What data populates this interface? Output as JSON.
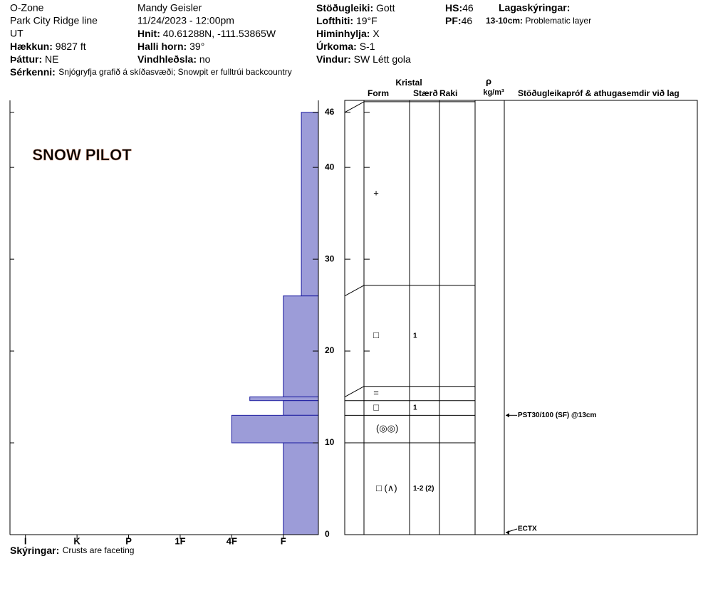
{
  "header": {
    "col1": [
      {
        "text": "O-Zone"
      },
      {
        "text": "Park City Ridge line"
      },
      {
        "text": "UT"
      },
      {
        "label": "Hækkun:",
        "value": "9827 ft"
      },
      {
        "label": "Þáttur:",
        "value": "NE"
      }
    ],
    "col2": [
      {
        "text": "Mandy Geisler"
      },
      {
        "text": "11/24/2023 - 12:00pm"
      },
      {
        "label": "Hnit:",
        "value": "40.61288N, -111.53865W"
      },
      {
        "label": "Halli horn:",
        "value": "39°"
      },
      {
        "label": "Vindhleðsla:",
        "value": "no"
      }
    ],
    "col3": [
      {
        "label": "Stöðugleiki:",
        "value": "Gott"
      },
      {
        "label": "Lofthiti:",
        "value": "19°F"
      },
      {
        "label": "Himinhylja:",
        "value": "X"
      },
      {
        "label": "Úrkoma:",
        "value": "S-1"
      },
      {
        "label": "Vindur:",
        "value": "SW Létt gola"
      }
    ],
    "col4": [
      {
        "label": "HS:",
        "value": "46"
      },
      {
        "label": "PF:",
        "value": "46"
      }
    ],
    "notes_title": "Lagaskýringar:",
    "notes": [
      {
        "label": "13-10cm:",
        "value": "Problematic layer"
      }
    ],
    "features": {
      "label": "Sérkenni:",
      "value": "Snjógryfja grafið á skíðasvæði;  Snowpit er fulltrúi backcountry"
    }
  },
  "chart_data": {
    "type": "snow-profile",
    "logo": "SNOW PILOT",
    "color": "#9c9cd8",
    "ylim": [
      0,
      47.3
    ],
    "yticks": [
      0,
      10,
      20,
      30,
      40,
      46
    ],
    "xlim": [
      6.3,
      0.32
    ],
    "xticks": [
      {
        "value": 6,
        "label": "I"
      },
      {
        "value": 5,
        "label": "K"
      },
      {
        "value": 4,
        "label": "P"
      },
      {
        "value": 3,
        "label": "1F"
      },
      {
        "value": 2,
        "label": "4F"
      },
      {
        "value": 1,
        "label": "F"
      }
    ],
    "layers": [
      {
        "top": 46,
        "bottom": 26,
        "hardness": 0.65,
        "form": "+"
      },
      {
        "top": 26,
        "bottom": 15,
        "hardness": 1,
        "form": "□",
        "size": "1"
      },
      {
        "top": 15,
        "bottom": 14.6,
        "hardness": 1.65,
        "form": "="
      },
      {
        "top": 14.6,
        "bottom": 13,
        "hardness": 1,
        "form": "□",
        "size": "1"
      },
      {
        "top": 13,
        "bottom": 10,
        "hardness": 2,
        "form": "(◎◎)"
      },
      {
        "top": 10,
        "bottom": 0,
        "hardness": 1,
        "form": "□ (∧)",
        "size": "1-2 (2)"
      }
    ],
    "table_headers": {
      "crystal": "Kristal",
      "form": "Form",
      "size": "Stærð",
      "moisture": "Raki",
      "rho": "ρ",
      "density_unit": "kg/m³",
      "tests": "Stöðugleikapróf & athugasemdir við lag"
    },
    "tests": [
      {
        "depth": 13,
        "label": "PST30/100 (SF) @13cm"
      },
      {
        "depth": 0,
        "label": "ECTX"
      }
    ],
    "legend": {
      "label": "Skýringar:",
      "value": "Crusts are faceting"
    }
  }
}
